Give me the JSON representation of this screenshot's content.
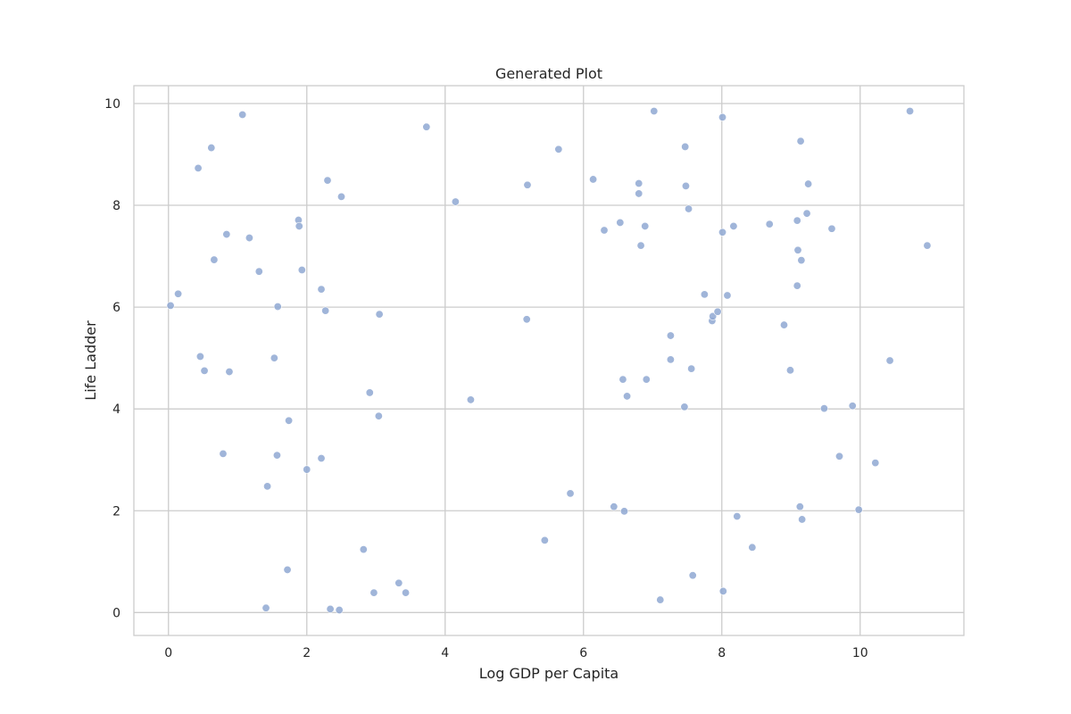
{
  "chart_data": {
    "type": "scatter",
    "title": "Generated Plot",
    "xlabel": "Log GDP per Capita",
    "ylabel": "Life Ladder",
    "xlim": [
      -0.5,
      11.5
    ],
    "ylim": [
      -0.45,
      10.35
    ],
    "xticks": [
      0,
      2,
      4,
      6,
      8,
      10
    ],
    "yticks": [
      0,
      2,
      4,
      6,
      8,
      10
    ],
    "grid": true,
    "colors": {
      "point": "#8fa8d2",
      "grid": "#cccccc",
      "frame": "#cccccc"
    },
    "points": [
      {
        "x": 0.03,
        "y": 6.03
      },
      {
        "x": 0.14,
        "y": 6.26
      },
      {
        "x": 0.43,
        "y": 8.73
      },
      {
        "x": 0.46,
        "y": 5.03
      },
      {
        "x": 0.52,
        "y": 4.75
      },
      {
        "x": 0.62,
        "y": 9.13
      },
      {
        "x": 0.66,
        "y": 6.93
      },
      {
        "x": 0.79,
        "y": 3.12
      },
      {
        "x": 0.84,
        "y": 7.43
      },
      {
        "x": 0.88,
        "y": 4.73
      },
      {
        "x": 1.07,
        "y": 9.78
      },
      {
        "x": 1.17,
        "y": 7.36
      },
      {
        "x": 1.31,
        "y": 6.7
      },
      {
        "x": 1.41,
        "y": 0.09
      },
      {
        "x": 1.43,
        "y": 2.48
      },
      {
        "x": 1.53,
        "y": 5.0
      },
      {
        "x": 1.57,
        "y": 3.09
      },
      {
        "x": 1.58,
        "y": 6.01
      },
      {
        "x": 1.72,
        "y": 0.84
      },
      {
        "x": 1.74,
        "y": 3.77
      },
      {
        "x": 1.88,
        "y": 7.71
      },
      {
        "x": 1.89,
        "y": 7.59
      },
      {
        "x": 1.93,
        "y": 6.73
      },
      {
        "x": 2.0,
        "y": 2.81
      },
      {
        "x": 2.21,
        "y": 6.35
      },
      {
        "x": 2.21,
        "y": 3.03
      },
      {
        "x": 2.27,
        "y": 5.93
      },
      {
        "x": 2.3,
        "y": 8.49
      },
      {
        "x": 2.34,
        "y": 0.07
      },
      {
        "x": 2.47,
        "y": 0.05
      },
      {
        "x": 2.5,
        "y": 8.17
      },
      {
        "x": 2.82,
        "y": 1.24
      },
      {
        "x": 2.91,
        "y": 4.32
      },
      {
        "x": 2.97,
        "y": 0.39
      },
      {
        "x": 3.04,
        "y": 3.86
      },
      {
        "x": 3.05,
        "y": 5.86
      },
      {
        "x": 3.33,
        "y": 0.58
      },
      {
        "x": 3.43,
        "y": 0.39
      },
      {
        "x": 3.73,
        "y": 9.54
      },
      {
        "x": 4.15,
        "y": 8.07
      },
      {
        "x": 4.37,
        "y": 4.18
      },
      {
        "x": 5.18,
        "y": 5.76
      },
      {
        "x": 5.19,
        "y": 8.4
      },
      {
        "x": 5.44,
        "y": 1.42
      },
      {
        "x": 5.64,
        "y": 9.1
      },
      {
        "x": 5.81,
        "y": 2.34
      },
      {
        "x": 6.14,
        "y": 8.51
      },
      {
        "x": 6.3,
        "y": 7.51
      },
      {
        "x": 6.44,
        "y": 2.08
      },
      {
        "x": 6.53,
        "y": 7.66
      },
      {
        "x": 6.57,
        "y": 4.58
      },
      {
        "x": 6.59,
        "y": 1.99
      },
      {
        "x": 6.63,
        "y": 4.25
      },
      {
        "x": 6.8,
        "y": 8.43
      },
      {
        "x": 6.8,
        "y": 8.23
      },
      {
        "x": 6.83,
        "y": 7.21
      },
      {
        "x": 6.89,
        "y": 7.59
      },
      {
        "x": 6.91,
        "y": 4.58
      },
      {
        "x": 7.02,
        "y": 9.85
      },
      {
        "x": 7.11,
        "y": 0.25
      },
      {
        "x": 7.26,
        "y": 5.44
      },
      {
        "x": 7.26,
        "y": 4.97
      },
      {
        "x": 7.46,
        "y": 4.04
      },
      {
        "x": 7.47,
        "y": 9.15
      },
      {
        "x": 7.48,
        "y": 8.38
      },
      {
        "x": 7.52,
        "y": 7.93
      },
      {
        "x": 7.56,
        "y": 4.79
      },
      {
        "x": 7.58,
        "y": 0.73
      },
      {
        "x": 7.75,
        "y": 6.25
      },
      {
        "x": 7.86,
        "y": 5.73
      },
      {
        "x": 7.87,
        "y": 5.82
      },
      {
        "x": 7.94,
        "y": 5.91
      },
      {
        "x": 8.01,
        "y": 9.73
      },
      {
        "x": 8.01,
        "y": 7.47
      },
      {
        "x": 8.02,
        "y": 0.42
      },
      {
        "x": 8.08,
        "y": 6.23
      },
      {
        "x": 8.17,
        "y": 7.59
      },
      {
        "x": 8.22,
        "y": 1.89
      },
      {
        "x": 8.44,
        "y": 1.28
      },
      {
        "x": 8.69,
        "y": 7.63
      },
      {
        "x": 8.9,
        "y": 5.65
      },
      {
        "x": 8.99,
        "y": 4.76
      },
      {
        "x": 9.09,
        "y": 7.7
      },
      {
        "x": 9.09,
        "y": 6.42
      },
      {
        "x": 9.1,
        "y": 7.12
      },
      {
        "x": 9.13,
        "y": 2.08
      },
      {
        "x": 9.14,
        "y": 9.26
      },
      {
        "x": 9.15,
        "y": 6.92
      },
      {
        "x": 9.16,
        "y": 1.83
      },
      {
        "x": 9.23,
        "y": 7.84
      },
      {
        "x": 9.25,
        "y": 8.42
      },
      {
        "x": 9.48,
        "y": 4.01
      },
      {
        "x": 9.59,
        "y": 7.54
      },
      {
        "x": 9.7,
        "y": 3.07
      },
      {
        "x": 9.89,
        "y": 4.06
      },
      {
        "x": 9.98,
        "y": 2.02
      },
      {
        "x": 10.22,
        "y": 2.94
      },
      {
        "x": 10.43,
        "y": 4.95
      },
      {
        "x": 10.72,
        "y": 9.85
      },
      {
        "x": 10.97,
        "y": 7.21
      }
    ]
  }
}
